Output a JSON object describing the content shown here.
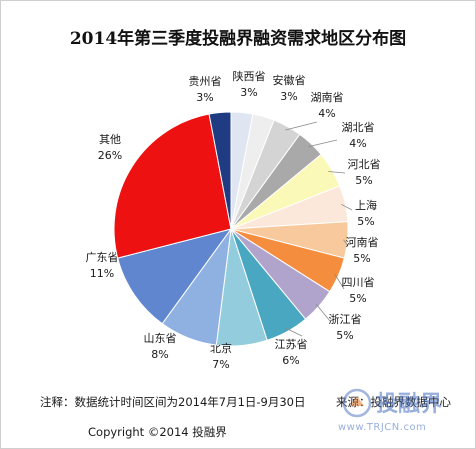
{
  "chart_data": {
    "type": "pie",
    "title": "2014年第三季度投融界融资需求地区分布图",
    "slices": [
      {
        "name": "陕西省",
        "value": 3,
        "label": "3%",
        "color": "#dfe6f2"
      },
      {
        "name": "安徽省",
        "value": 3,
        "label": "3%",
        "color": "#eeeeee"
      },
      {
        "name": "湖南省",
        "value": 4,
        "label": "4%",
        "color": "#d4d4d4"
      },
      {
        "name": "湖北省",
        "value": 4,
        "label": "4%",
        "color": "#a9a9a9"
      },
      {
        "name": "河北省",
        "value": 5,
        "label": "5%",
        "color": "#fbf9b8"
      },
      {
        "name": "上海",
        "value": 5,
        "label": "5%",
        "color": "#fce8da"
      },
      {
        "name": "河南省",
        "value": 5,
        "label": "5%",
        "color": "#f8c99c"
      },
      {
        "name": "四川省",
        "value": 5,
        "label": "5%",
        "color": "#f58d3e"
      },
      {
        "name": "浙江省",
        "value": 5,
        "label": "5%",
        "color": "#b1a4cc"
      },
      {
        "name": "江苏省",
        "value": 6,
        "label": "6%",
        "color": "#4aa7c2"
      },
      {
        "name": "北京",
        "value": 7,
        "label": "7%",
        "color": "#93cddd"
      },
      {
        "name": "山东省",
        "value": 8,
        "label": "8%",
        "color": "#8fb1e2"
      },
      {
        "name": "广东省",
        "value": 11,
        "label": "11%",
        "color": "#5f86cf"
      },
      {
        "name": "其他",
        "value": 26,
        "label": "26%",
        "color": "#ee1111"
      },
      {
        "name": "贵州省",
        "value": 3,
        "label": "3%",
        "color": "#1f3c82"
      }
    ]
  },
  "footer": {
    "note": "注释：数据统计时间区间为2014年7月1日-9月30日",
    "source": "来源：投融界数据中心",
    "copyright": "Copyright ©2014 投融界"
  },
  "watermark": {
    "text": "投融界",
    "url": "www.TRJCN.com"
  }
}
